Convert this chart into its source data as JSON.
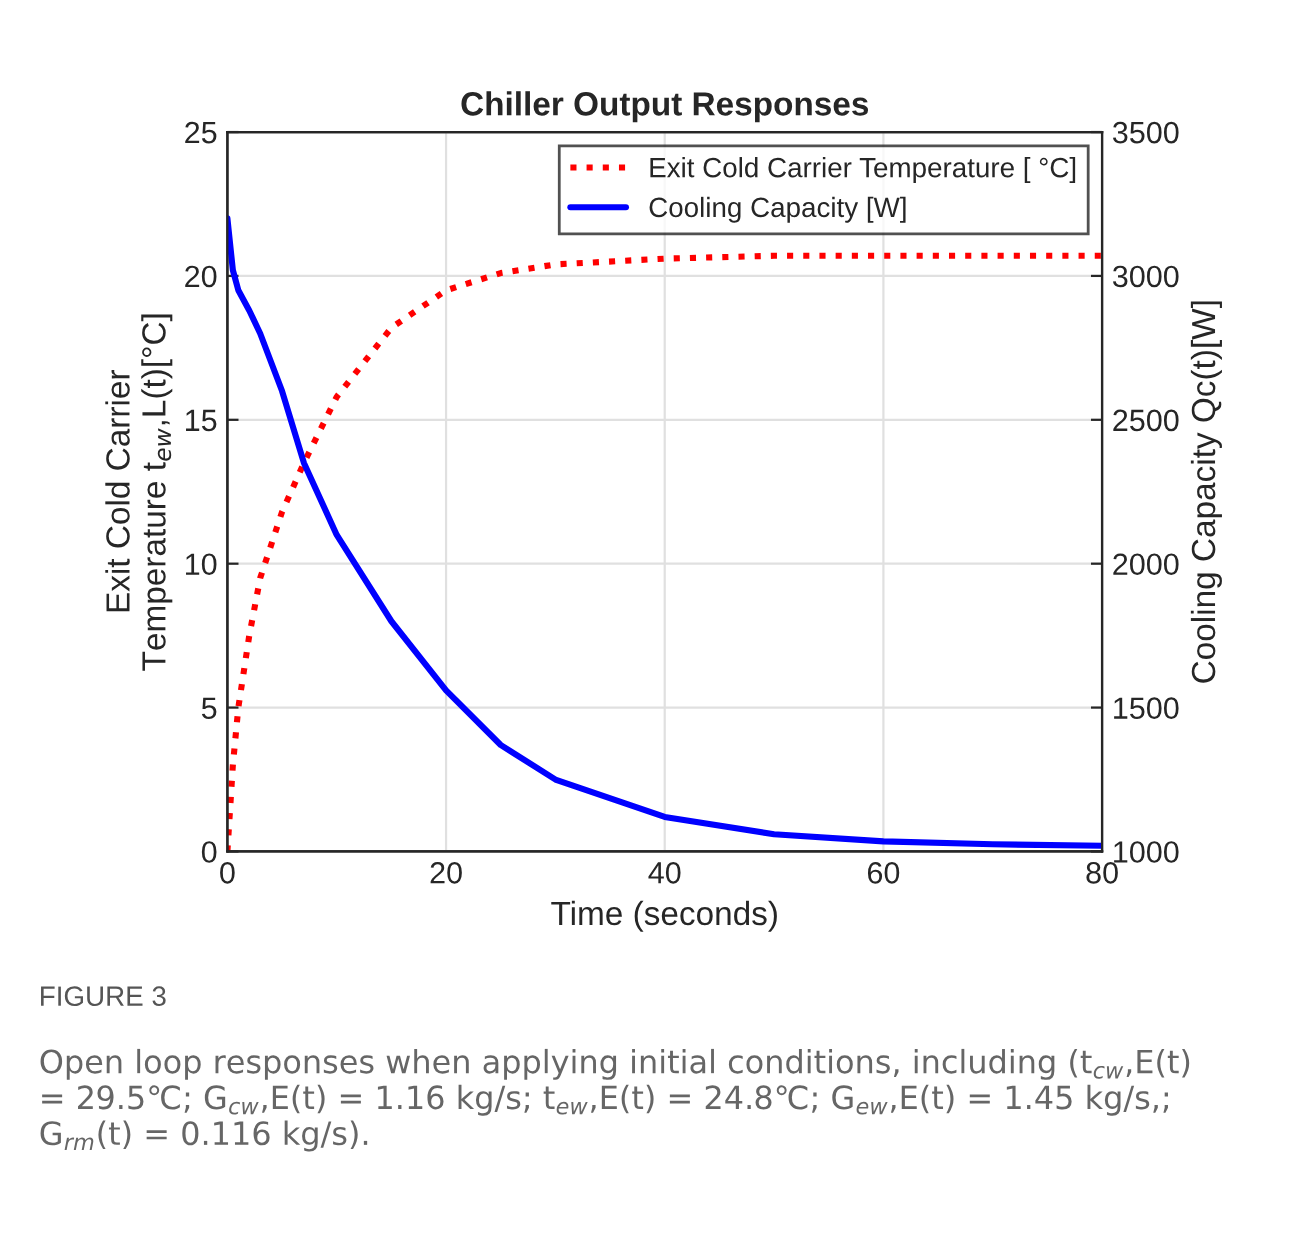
{
  "chart_data": {
    "type": "line",
    "title": "Chiller Output Responses",
    "xlabel": "Time (seconds)",
    "ylabel": "Exit Cold Carrier\nTemperature t$_{ew}$,L(t)[°C]",
    "y2label": "Cooling Capacity Qc(t)[W]",
    "xlim": [
      0,
      80
    ],
    "xticks": [
      0,
      20,
      40,
      60,
      80
    ],
    "ylim": [
      0,
      25
    ],
    "yticks": [
      0,
      5,
      10,
      15,
      20,
      25
    ],
    "y2lim": [
      1000,
      3500
    ],
    "y2ticks": [
      1000,
      1500,
      2000,
      2500,
      3000,
      3500
    ],
    "grid": true,
    "legend": "top right",
    "series": [
      {
        "name": "Exit Cold Carrier Temperature [ °C]",
        "color": "#ff0000",
        "line_style": "dotted",
        "x": [
          0,
          0.5,
          1,
          2,
          3,
          5,
          7,
          10,
          15,
          20,
          25,
          30,
          40,
          50,
          60,
          80
        ],
        "values": [
          0,
          3,
          5,
          7.5,
          9.5,
          11.8,
          13.5,
          15.8,
          18.2,
          19.5,
          20.1,
          20.4,
          20.6,
          20.7,
          20.7,
          20.7
        ]
      },
      {
        "name": "Cooling Capacity [W]",
        "color": "#0000ff",
        "line_style": "solid",
        "axis": "y2",
        "x": [
          0,
          0.5,
          1,
          2,
          3,
          5,
          7,
          10,
          15,
          20,
          25,
          30,
          40,
          50,
          60,
          70,
          80
        ],
        "values": [
          3200,
          3020,
          2950,
          2880,
          2800,
          2600,
          2350,
          2100,
          1800,
          1560,
          1370,
          1250,
          1120,
          1060,
          1035,
          1025,
          1020
        ]
      }
    ],
    "annotations": [
      "FIGURE 3",
      "Open loop responses when applying initial conditions, including (t$_{cw}$,E(t) = 29.5℃; G$_{cw}$,E(t) = 1.16 kg/s; t$_{ew}$,E(t) = 24.8℃; G$_{ew}$,E(t) = 1.45 kg/s,; G$_{rm}$(t) = 0.116 kg/s)."
    ]
  }
}
